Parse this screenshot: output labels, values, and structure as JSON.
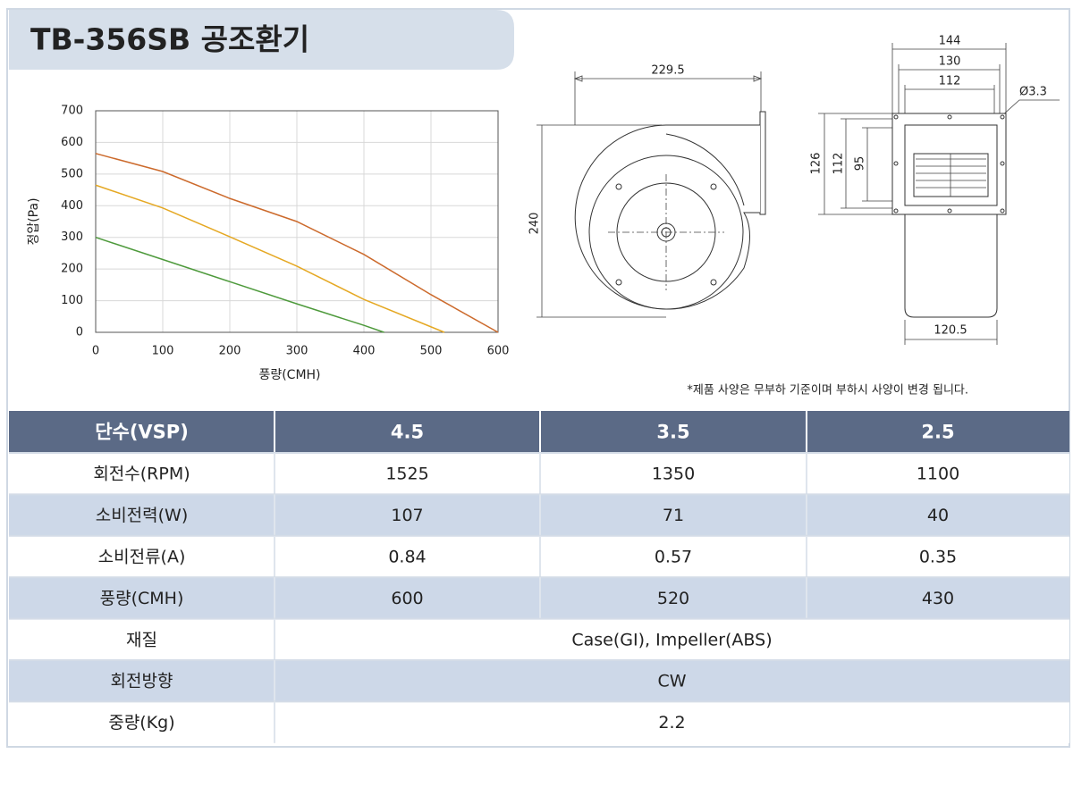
{
  "header": {
    "title": "TB-356SB 공조환기"
  },
  "chart_data": {
    "type": "line",
    "xlabel": "풍량(CMH)",
    "ylabel": "정압(Pa)",
    "xlim": [
      0,
      600
    ],
    "ylim": [
      0,
      700
    ],
    "xticks": [
      0,
      100,
      200,
      300,
      400,
      500,
      600
    ],
    "yticks": [
      0,
      100,
      200,
      300,
      400,
      500,
      600,
      700
    ],
    "grid": true,
    "series": [
      {
        "color": "#cc6a2c",
        "x": [
          0,
          100,
          200,
          300,
          400,
          500,
          600
        ],
        "values": [
          565,
          508,
          423,
          350,
          246,
          119,
          0
        ]
      },
      {
        "color": "#e5a823",
        "x": [
          0,
          100,
          200,
          300,
          400,
          520
        ],
        "values": [
          465,
          393,
          302,
          209,
          104,
          0
        ]
      },
      {
        "color": "#4e9a3c",
        "x": [
          0,
          100,
          200,
          300,
          400,
          430
        ],
        "values": [
          300,
          230,
          160,
          90,
          22,
          0
        ]
      }
    ]
  },
  "drawing": {
    "front": {
      "width": "229.5",
      "height": "240"
    },
    "side": {
      "flange_width": "144",
      "hole_pitch": "130",
      "opening_width": "112",
      "hole_diameter": "Ø3.3",
      "flange_height": "126",
      "hole_pitch_vertical": "112",
      "opening_height": "95",
      "body_width": "120.5"
    }
  },
  "note": "*제품 사양은 무부하 기준이며 부하시 사양이 변경 됩니다.",
  "table": {
    "header": [
      "단수(VSP)",
      "4.5",
      "3.5",
      "2.5"
    ],
    "rows": [
      [
        "회전수(RPM)",
        "1525",
        "1350",
        "1100"
      ],
      [
        "소비전력(W)",
        "107",
        "71",
        "40"
      ],
      [
        "소비전류(A)",
        "0.84",
        "0.57",
        "0.35"
      ],
      [
        "풍량(CMH)",
        "600",
        "520",
        "430"
      ],
      [
        "재질",
        "Case(GI), Impeller(ABS)"
      ],
      [
        "회전방향",
        "CW"
      ],
      [
        "중량(Kg)",
        "2.2"
      ]
    ]
  }
}
